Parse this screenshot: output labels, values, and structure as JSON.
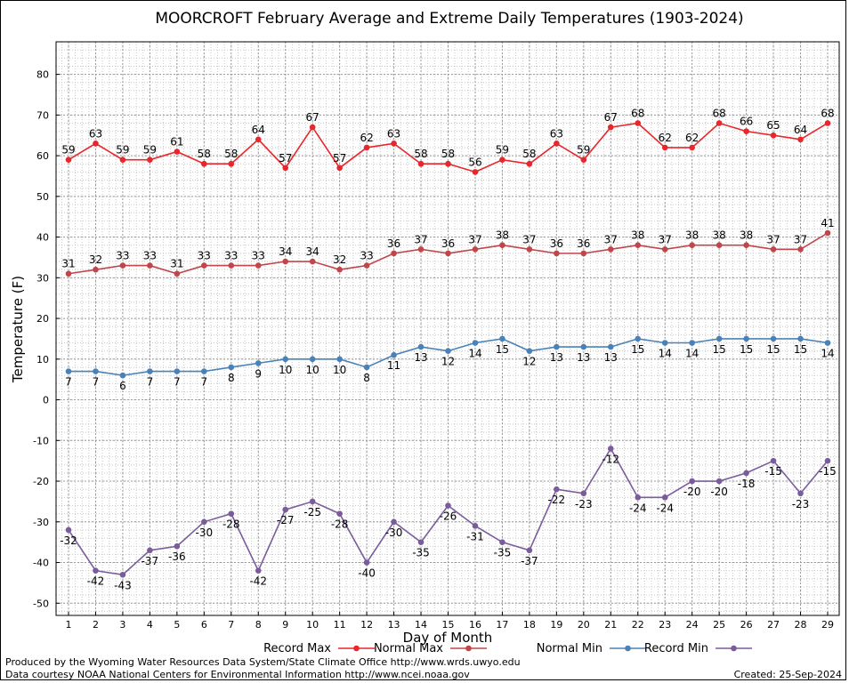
{
  "chart_data": {
    "type": "line",
    "title": "MOORCROFT February Average and Extreme Daily Temperatures (1903-2024)",
    "xlabel": "Day of Month",
    "ylabel": "Temperature (F)",
    "ylim": [
      -53,
      88
    ],
    "yticks": [
      -50,
      -40,
      -30,
      -20,
      -10,
      0,
      10,
      20,
      30,
      40,
      50,
      60,
      70,
      80
    ],
    "x": [
      1,
      2,
      3,
      4,
      5,
      6,
      7,
      8,
      9,
      10,
      11,
      12,
      13,
      14,
      15,
      16,
      17,
      18,
      19,
      20,
      21,
      22,
      23,
      24,
      25,
      26,
      27,
      28,
      29
    ],
    "grid": true,
    "legend_position": "bottom",
    "series": [
      {
        "name": "Record Max",
        "color": "#e8262b",
        "label_position": "above",
        "values": [
          59,
          63,
          59,
          59,
          61,
          58,
          58,
          64,
          57,
          67,
          57,
          62,
          63,
          58,
          58,
          56,
          59,
          58,
          63,
          59,
          67,
          68,
          62,
          62,
          68,
          66,
          65,
          64,
          68
        ]
      },
      {
        "name": "Normal Max",
        "color": "#c0464a",
        "label_position": "above",
        "values": [
          31,
          32,
          33,
          33,
          31,
          33,
          33,
          33,
          34,
          34,
          32,
          33,
          36,
          37,
          36,
          37,
          38,
          37,
          36,
          36,
          37,
          38,
          37,
          38,
          38,
          38,
          37,
          37,
          41
        ]
      },
      {
        "name": "Normal Min",
        "color": "#4a82b8",
        "label_position": "below",
        "values": [
          7,
          7,
          6,
          7,
          7,
          7,
          8,
          9,
          10,
          10,
          10,
          8,
          11,
          13,
          12,
          14,
          15,
          12,
          13,
          13,
          13,
          15,
          14,
          14,
          15,
          15,
          15,
          15,
          14
        ]
      },
      {
        "name": "Record Min",
        "color": "#7a5c9c",
        "label_position": "below",
        "values": [
          -32,
          -42,
          -43,
          -37,
          -36,
          -30,
          -28,
          -42,
          -27,
          -25,
          -28,
          -40,
          -30,
          -35,
          -26,
          -31,
          -35,
          -37,
          -22,
          -23,
          -12,
          -24,
          -24,
          -20,
          -20,
          -18,
          -15,
          -23,
          -15
        ]
      }
    ]
  },
  "footer": {
    "produced_by": "Produced by the Wyoming Water Resources Data System/State Climate Office http://www.wrds.uwyo.edu",
    "data_courtesy": "Data courtesy NOAA National Centers for Environmental Information http://www.ncei.noaa.gov",
    "created": "Created:  25-Sep-2024"
  }
}
